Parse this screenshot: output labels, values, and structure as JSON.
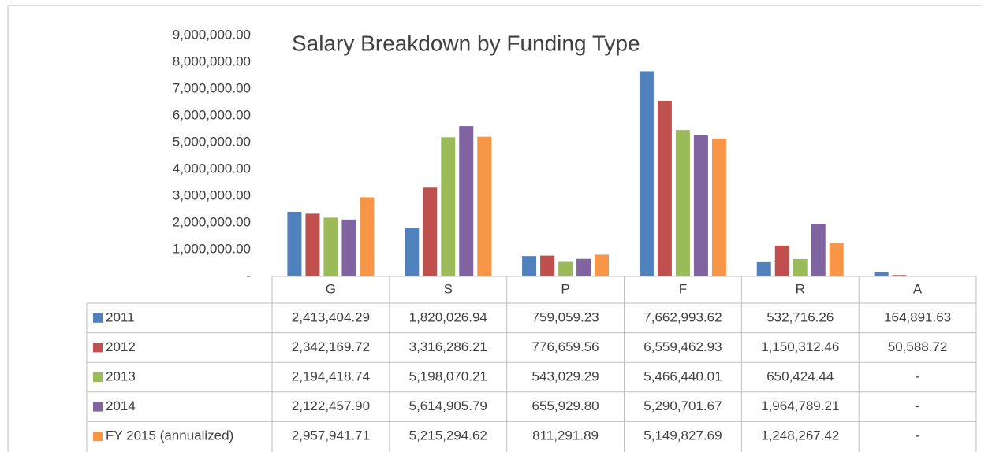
{
  "chart_data": {
    "type": "bar",
    "title": "Salary Breakdown by Funding Type",
    "categories": [
      "G",
      "S",
      "P",
      "F",
      "R",
      "A"
    ],
    "series": [
      {
        "name": "2011",
        "color": "#4f81bd",
        "values": [
          2413404.29,
          1820026.94,
          759059.23,
          7662993.62,
          532716.26,
          164891.63
        ],
        "value_labels": [
          "2,413,404.29",
          "1,820,026.94",
          "759,059.23",
          "7,662,993.62",
          "532,716.26",
          "164,891.63"
        ]
      },
      {
        "name": "2012",
        "color": "#c0504d",
        "values": [
          2342169.72,
          3316286.21,
          776659.56,
          6559462.93,
          1150312.46,
          50588.72
        ],
        "value_labels": [
          "2,342,169.72",
          "3,316,286.21",
          "776,659.56",
          "6,559,462.93",
          "1,150,312.46",
          "50,588.72"
        ]
      },
      {
        "name": "2013",
        "color": "#9bbb59",
        "values": [
          2194418.74,
          5198070.21,
          543029.29,
          5466440.01,
          650424.44,
          0
        ],
        "value_labels": [
          "2,194,418.74",
          "5,198,070.21",
          "543,029.29",
          "5,466,440.01",
          "650,424.44",
          "-"
        ]
      },
      {
        "name": "2014",
        "color": "#8064a2",
        "values": [
          2122457.9,
          5614905.79,
          655929.8,
          5290701.67,
          1964789.21,
          0
        ],
        "value_labels": [
          "2,122,457.90",
          "5,614,905.79",
          "655,929.80",
          "5,290,701.67",
          "1,964,789.21",
          "-"
        ]
      },
      {
        "name": "FY 2015 (annualized)",
        "color": "#f79646",
        "values": [
          2957941.71,
          5215294.62,
          811291.89,
          5149827.69,
          1248267.42,
          0
        ],
        "value_labels": [
          "2,957,941.71",
          "5,215,294.62",
          "811,291.89",
          "5,149,827.69",
          "1,248,267.42",
          "-"
        ]
      }
    ],
    "ylim": [
      0,
      9000000
    ],
    "yticks": [
      {
        "value": 0,
        "label": "-"
      },
      {
        "value": 1000000,
        "label": "1,000,000.00"
      },
      {
        "value": 2000000,
        "label": "2,000,000.00"
      },
      {
        "value": 3000000,
        "label": "3,000,000.00"
      },
      {
        "value": 4000000,
        "label": "4,000,000.00"
      },
      {
        "value": 5000000,
        "label": "5,000,000.00"
      },
      {
        "value": 6000000,
        "label": "6,000,000.00"
      },
      {
        "value": 7000000,
        "label": "7,000,000.00"
      },
      {
        "value": 8000000,
        "label": "8,000,000.00"
      },
      {
        "value": 9000000,
        "label": "9,000,000.00"
      }
    ],
    "grid": false
  }
}
